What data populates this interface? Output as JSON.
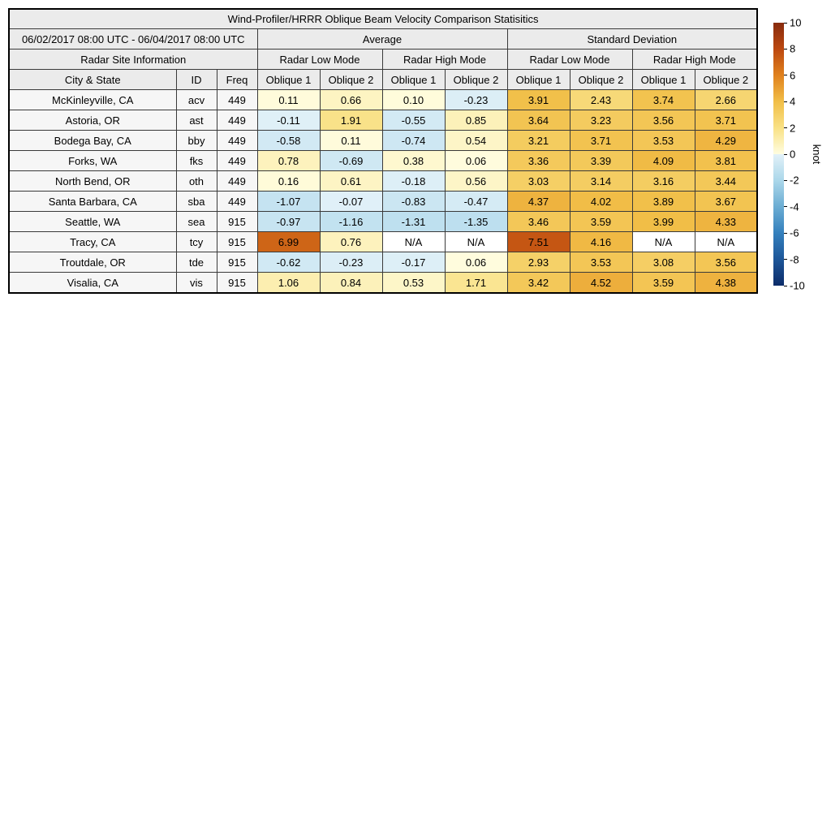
{
  "chart_data": {
    "type": "table",
    "title": "Wind-Profiler/HRRR Oblique Beam Velocity Comparison Statisitics",
    "header": {
      "date_range": "06/02/2017 08:00 UTC - 06/04/2017 08:00 UTC",
      "group_average": "Average",
      "group_stddev": "Standard Deviation",
      "site_info": "Radar Site Information",
      "mode_labels": [
        "Radar Low Mode",
        "Radar High Mode",
        "Radar Low Mode",
        "Radar High Mode"
      ],
      "columns": [
        "City & State",
        "ID",
        "Freq",
        "Oblique 1",
        "Oblique 2",
        "Oblique 1",
        "Oblique 2",
        "Oblique 1",
        "Oblique 2",
        "Oblique 1",
        "Oblique 2"
      ]
    },
    "rows": [
      {
        "city": "McKinleyville, CA",
        "id": "acv",
        "freq": "449",
        "values": [
          "0.11",
          "0.66",
          "0.10",
          "-0.23",
          "3.91",
          "2.43",
          "3.74",
          "2.66"
        ]
      },
      {
        "city": "Astoria, OR",
        "id": "ast",
        "freq": "449",
        "values": [
          "-0.11",
          "1.91",
          "-0.55",
          "0.85",
          "3.64",
          "3.23",
          "3.56",
          "3.71"
        ]
      },
      {
        "city": "Bodega Bay, CA",
        "id": "bby",
        "freq": "449",
        "values": [
          "-0.58",
          "0.11",
          "-0.74",
          "0.54",
          "3.21",
          "3.71",
          "3.53",
          "4.29"
        ]
      },
      {
        "city": "Forks, WA",
        "id": "fks",
        "freq": "449",
        "values": [
          "0.78",
          "-0.69",
          "0.38",
          "0.06",
          "3.36",
          "3.39",
          "4.09",
          "3.81"
        ]
      },
      {
        "city": "North Bend, OR",
        "id": "oth",
        "freq": "449",
        "values": [
          "0.16",
          "0.61",
          "-0.18",
          "0.56",
          "3.03",
          "3.14",
          "3.16",
          "3.44"
        ]
      },
      {
        "city": "Santa Barbara, CA",
        "id": "sba",
        "freq": "449",
        "values": [
          "-1.07",
          "-0.07",
          "-0.83",
          "-0.47",
          "4.37",
          "4.02",
          "3.89",
          "3.67"
        ]
      },
      {
        "city": "Seattle, WA",
        "id": "sea",
        "freq": "915",
        "values": [
          "-0.97",
          "-1.16",
          "-1.31",
          "-1.35",
          "3.46",
          "3.59",
          "3.99",
          "4.33"
        ]
      },
      {
        "city": "Tracy, CA",
        "id": "tcy",
        "freq": "915",
        "values": [
          "6.99",
          "0.76",
          "N/A",
          "N/A",
          "7.51",
          "4.16",
          "N/A",
          "N/A"
        ]
      },
      {
        "city": "Troutdale, OR",
        "id": "tde",
        "freq": "915",
        "values": [
          "-0.62",
          "-0.23",
          "-0.17",
          "0.06",
          "2.93",
          "3.53",
          "3.08",
          "3.56"
        ]
      },
      {
        "city": "Visalia, CA",
        "id": "vis",
        "freq": "915",
        "values": [
          "1.06",
          "0.84",
          "0.53",
          "1.71",
          "3.42",
          "4.52",
          "3.59",
          "4.38"
        ]
      }
    ],
    "colorbar": {
      "label": "knot",
      "min": -10,
      "max": 10,
      "ticks": [
        10,
        8,
        6,
        4,
        2,
        0,
        -2,
        -4,
        -6,
        -8,
        -10
      ]
    },
    "colormap": {
      "positive": [
        [
          0,
          "#FFFDE0"
        ],
        [
          2,
          "#F9E185"
        ],
        [
          4,
          "#F1BE47"
        ],
        [
          6,
          "#E0811D"
        ],
        [
          8,
          "#BC4810"
        ],
        [
          10,
          "#872B0E"
        ]
      ],
      "negative": [
        [
          0,
          "#E2F1F8"
        ],
        [
          -2,
          "#ABD7EA"
        ],
        [
          -4,
          "#6CADD3"
        ],
        [
          -6,
          "#3480BD"
        ],
        [
          -8,
          "#1D5699"
        ],
        [
          -10,
          "#0C2C69"
        ]
      ],
      "na_color": "#FFFFFF"
    },
    "colors": {
      "header_bg": "#EBEBEB",
      "label_cell_bg": "#F6F6F6",
      "grid_border": "#3A3A3A",
      "outer_border": "#000000",
      "text": "#000000"
    }
  }
}
